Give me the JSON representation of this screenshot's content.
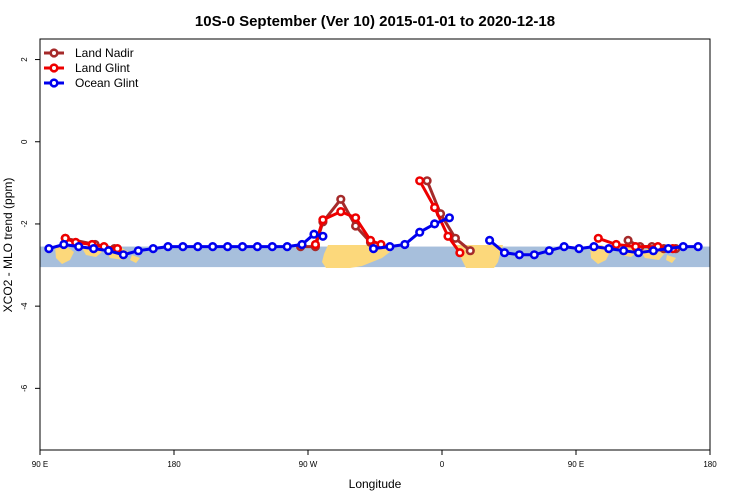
{
  "chart_data": {
    "type": "line",
    "title": "10S-0 September (Ver 10)   2015-01-01 to 2020-12-18",
    "xlabel": "Longitude",
    "ylabel": "XCO2 - MLO trend (ppm)",
    "xlim": [
      90,
      540
    ],
    "ylim": [
      -7.5,
      2.5
    ],
    "x_ticks": [
      {
        "value": 90,
        "label": "90 E"
      },
      {
        "value": 180,
        "label": "180"
      },
      {
        "value": 270,
        "label": "90 W"
      },
      {
        "value": 360,
        "label": "0"
      },
      {
        "value": 450,
        "label": "90 E"
      },
      {
        "value": 540,
        "label": "180"
      }
    ],
    "y_ticks": [
      {
        "value": 2,
        "label": "2"
      },
      {
        "value": 0,
        "label": "0"
      },
      {
        "value": -2,
        "label": "-2"
      },
      {
        "value": -4,
        "label": "-4"
      },
      {
        "value": -6,
        "label": "-6"
      }
    ],
    "legend": {
      "position": "top-left"
    },
    "map_band": {
      "lat_top": -2.55,
      "lat_bottom": -3.05,
      "ocean_color": "#a7bfdc",
      "land_color": "#fcd87b"
    },
    "series": [
      {
        "name": "Land Nadir",
        "color": "#a52a2a",
        "segments": [
          [
            [
              107,
              -2.35
            ],
            [
              127,
              -2.5
            ],
            [
              140,
              -2.6
            ]
          ],
          [
            [
              265,
              -2.55
            ],
            [
              275,
              -2.55
            ],
            [
              280,
              -1.95
            ],
            [
              292,
              -1.4
            ],
            [
              302,
              -2.05
            ],
            [
              312,
              -2.45
            ]
          ],
          [
            [
              350,
              -0.95
            ],
            [
              359,
              -1.75
            ],
            [
              369,
              -2.35
            ],
            [
              379,
              -2.65
            ]
          ],
          [
            [
              485,
              -2.4
            ],
            [
              493,
              -2.55
            ],
            [
              501,
              -2.55
            ],
            [
              509,
              -2.6
            ],
            [
              517,
              -2.6
            ]
          ]
        ]
      },
      {
        "name": "Land Glint",
        "color": "#ee0000",
        "segments": [
          [
            [
              107,
              -2.35
            ],
            [
              114,
              -2.45
            ],
            [
              125,
              -2.5
            ],
            [
              133,
              -2.55
            ],
            [
              142,
              -2.6
            ]
          ],
          [
            [
              275,
              -2.5
            ],
            [
              280,
              -1.9
            ],
            [
              292,
              -1.7
            ],
            [
              302,
              -1.85
            ],
            [
              312,
              -2.4
            ],
            [
              319,
              -2.5
            ]
          ],
          [
            [
              345,
              -0.95
            ],
            [
              355,
              -1.6
            ],
            [
              364,
              -2.3
            ],
            [
              372,
              -2.7
            ]
          ],
          [
            [
              465,
              -2.35
            ],
            [
              477,
              -2.5
            ],
            [
              490,
              -2.55
            ],
            [
              505,
              -2.55
            ],
            [
              515,
              -2.6
            ]
          ]
        ]
      },
      {
        "name": "Ocean Glint",
        "color": "#0000ee",
        "segments": [
          [
            [
              96,
              -2.6
            ],
            [
              106,
              -2.5
            ],
            [
              116,
              -2.55
            ],
            [
              126,
              -2.6
            ],
            [
              136,
              -2.65
            ],
            [
              146,
              -2.75
            ],
            [
              156,
              -2.65
            ],
            [
              166,
              -2.6
            ],
            [
              176,
              -2.55
            ],
            [
              186,
              -2.55
            ],
            [
              196,
              -2.55
            ],
            [
              206,
              -2.55
            ],
            [
              216,
              -2.55
            ],
            [
              226,
              -2.55
            ],
            [
              236,
              -2.55
            ],
            [
              246,
              -2.55
            ],
            [
              256,
              -2.55
            ],
            [
              266,
              -2.5
            ],
            [
              274,
              -2.25
            ],
            [
              280,
              -2.3
            ]
          ],
          [
            [
              314,
              -2.6
            ],
            [
              325,
              -2.55
            ],
            [
              335,
              -2.5
            ],
            [
              345,
              -2.2
            ],
            [
              355,
              -2.0
            ],
            [
              365,
              -1.85
            ]
          ],
          [
            [
              392,
              -2.4
            ],
            [
              402,
              -2.7
            ],
            [
              412,
              -2.75
            ],
            [
              422,
              -2.75
            ],
            [
              432,
              -2.65
            ],
            [
              442,
              -2.55
            ],
            [
              452,
              -2.6
            ],
            [
              462,
              -2.55
            ],
            [
              472,
              -2.6
            ],
            [
              482,
              -2.65
            ],
            [
              492,
              -2.7
            ],
            [
              502,
              -2.65
            ],
            [
              512,
              -2.6
            ],
            [
              522,
              -2.55
            ],
            [
              532,
              -2.55
            ]
          ]
        ]
      }
    ]
  }
}
